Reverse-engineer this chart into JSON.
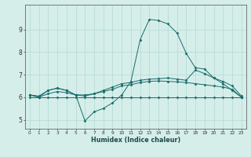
{
  "xlabel": "Humidex (Indice chaleur)",
  "bg_color": "#d5eeea",
  "grid_color": "#b8dbd7",
  "line_color": "#1a6b6b",
  "marker_color": "#1a6b6b",
  "xlim": [
    -0.5,
    23.5
  ],
  "ylim": [
    4.6,
    10.1
  ],
  "yticks": [
    5,
    6,
    7,
    8,
    9
  ],
  "xticks": [
    0,
    1,
    2,
    3,
    4,
    5,
    6,
    7,
    8,
    9,
    10,
    11,
    12,
    13,
    14,
    15,
    16,
    17,
    18,
    19,
    20,
    21,
    22,
    23
  ],
  "series": [
    {
      "x": [
        0,
        1,
        2,
        3,
        4,
        5,
        6,
        7,
        8,
        9,
        10,
        11,
        12,
        13,
        14,
        15,
        16,
        17,
        18,
        19,
        20,
        21,
        22,
        23
      ],
      "y": [
        6.1,
        6.0,
        6.3,
        6.4,
        6.3,
        6.1,
        4.95,
        5.35,
        5.5,
        5.75,
        6.1,
        6.7,
        8.55,
        9.45,
        9.4,
        9.25,
        8.85,
        7.95,
        7.3,
        7.25,
        6.85,
        6.6,
        6.3,
        6.0
      ]
    },
    {
      "x": [
        0,
        1,
        2,
        3,
        4,
        5,
        6,
        7,
        8,
        9,
        10,
        11,
        12,
        13,
        14,
        15,
        16,
        17,
        18,
        19,
        20,
        21,
        22,
        23
      ],
      "y": [
        6.0,
        6.0,
        6.0,
        6.0,
        6.0,
        6.0,
        6.0,
        6.0,
        6.0,
        6.0,
        6.0,
        6.0,
        6.0,
        6.0,
        6.0,
        6.0,
        6.0,
        6.0,
        6.0,
        6.0,
        6.0,
        6.0,
        6.0,
        6.0
      ]
    },
    {
      "x": [
        0,
        1,
        2,
        3,
        4,
        5,
        6,
        7,
        8,
        9,
        10,
        11,
        12,
        13,
        14,
        15,
        16,
        17,
        18,
        19,
        20,
        21,
        22,
        23
      ],
      "y": [
        6.1,
        6.0,
        6.15,
        6.25,
        6.2,
        6.1,
        6.1,
        6.15,
        6.25,
        6.35,
        6.5,
        6.55,
        6.65,
        6.7,
        6.72,
        6.7,
        6.68,
        6.65,
        6.6,
        6.55,
        6.5,
        6.45,
        6.35,
        6.0
      ]
    },
    {
      "x": [
        0,
        1,
        2,
        3,
        4,
        5,
        6,
        7,
        8,
        9,
        10,
        11,
        12,
        13,
        14,
        15,
        16,
        17,
        18,
        19,
        20,
        21,
        22,
        23
      ],
      "y": [
        6.1,
        6.05,
        6.3,
        6.4,
        6.3,
        6.1,
        6.05,
        6.15,
        6.3,
        6.45,
        6.6,
        6.65,
        6.75,
        6.8,
        6.82,
        6.85,
        6.8,
        6.75,
        7.2,
        7.05,
        6.85,
        6.7,
        6.5,
        6.05
      ]
    }
  ]
}
